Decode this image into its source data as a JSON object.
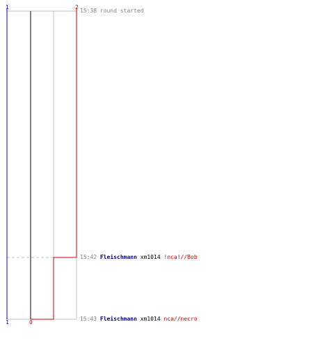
{
  "colors": {
    "blue": "#0000cc",
    "red": "#cc0000",
    "gray": "#888888",
    "light_gray": "#c0c0c0",
    "dark_text": "#000000",
    "name_blue": "#000080"
  },
  "axis_labels": {
    "blue_top": "1",
    "blue_bottom": "1",
    "red_top": "2",
    "red_bottom": "0"
  },
  "events": [
    {
      "time": "15:38",
      "message": "round started",
      "player": "",
      "code": "",
      "rank": ""
    },
    {
      "time": "15:42",
      "message": "",
      "player": "Fleischmann",
      "code": "xm1014",
      "rank": "!nca!//Bob"
    },
    {
      "time": "15:43",
      "message": "",
      "player": "Fleischmann",
      "code": "xm1014",
      "rank": "nca//necro"
    }
  ]
}
